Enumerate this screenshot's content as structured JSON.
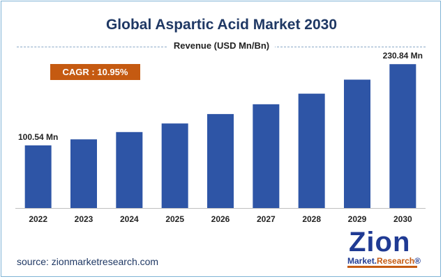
{
  "chart_data": {
    "type": "bar",
    "title": "Global Aspartic Acid Market 2030",
    "subtitle": "Revenue (USD Mn/Bn)",
    "categories": [
      "2022",
      "2023",
      "2024",
      "2025",
      "2026",
      "2027",
      "2028",
      "2029",
      "2030"
    ],
    "values": [
      100.54,
      110.2,
      121.9,
      135.7,
      150.8,
      166.5,
      183.5,
      206.0,
      230.84
    ],
    "data_labels": {
      "first": "100.54 Mn",
      "last": "230.84 Mn"
    },
    "annotation": "CAGR : 10.95%",
    "ylim": [
      0,
      240
    ],
    "grid": false,
    "bar_color": "#2e55a6"
  },
  "footer": {
    "source": "source: zionmarketresearch.com",
    "logo_main": "Zion",
    "logo_sub_1": "Market.",
    "logo_sub_2": "Research",
    "logo_sub_mark": "®"
  }
}
